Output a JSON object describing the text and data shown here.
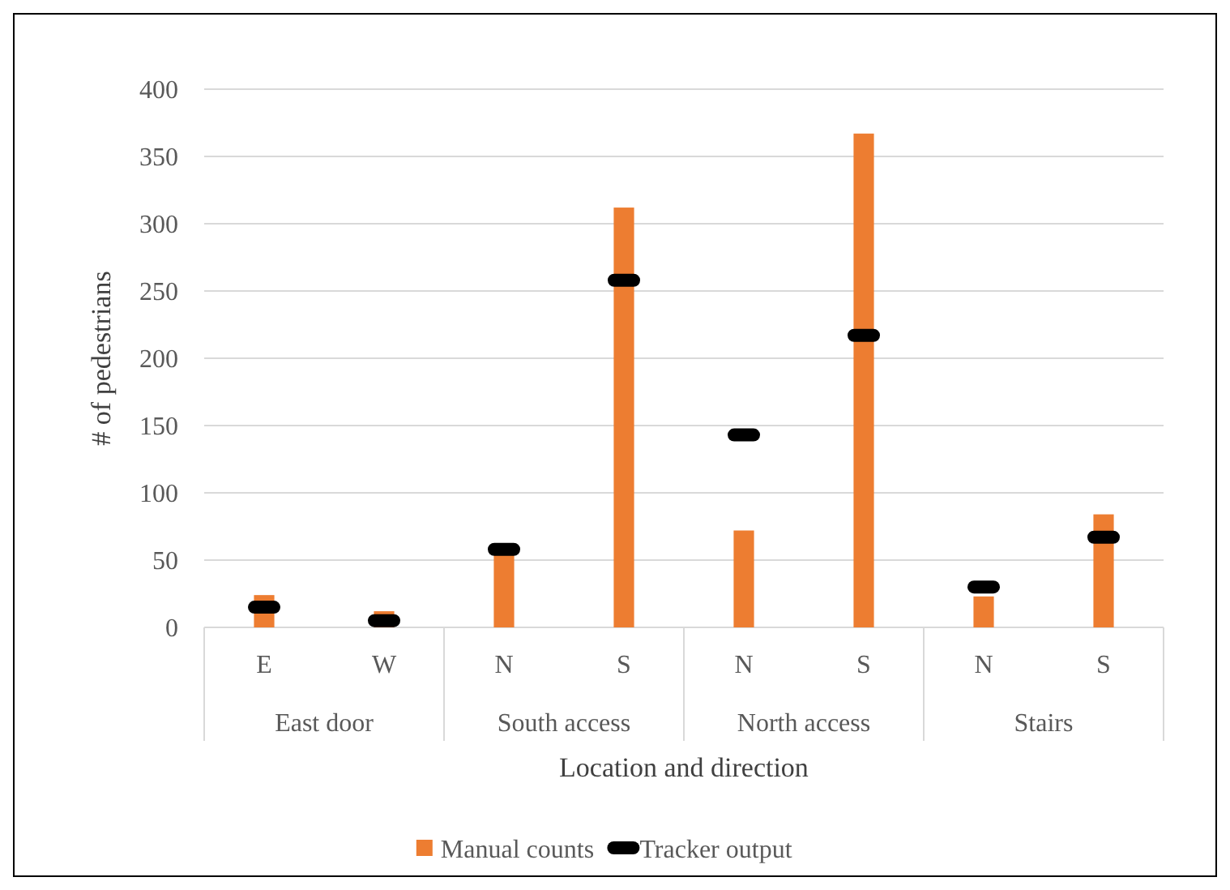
{
  "chart_data": {
    "type": "bar",
    "xlabel": "Location and direction",
    "ylabel": "# of pedestrians",
    "categories": [
      "E",
      "W",
      "N",
      "S",
      "N",
      "S",
      "N",
      "S"
    ],
    "series": [
      {
        "name": "Manual counts",
        "color": "#ed7d31",
        "values": [
          24,
          12,
          55,
          312,
          72,
          367,
          23,
          84
        ]
      },
      {
        "name": "Tracker output",
        "type": "scatter",
        "color": "#000000",
        "values": [
          15,
          5,
          58,
          258,
          143,
          217,
          30,
          67
        ]
      }
    ],
    "annotations": [
      "East door",
      "South access",
      "North access",
      "Stairs"
    ],
    "ylim": [
      0,
      400
    ],
    "yticks": [
      0,
      50,
      100,
      150,
      200,
      250,
      300,
      350,
      400
    ],
    "grid": "y",
    "legend": "bottom"
  }
}
